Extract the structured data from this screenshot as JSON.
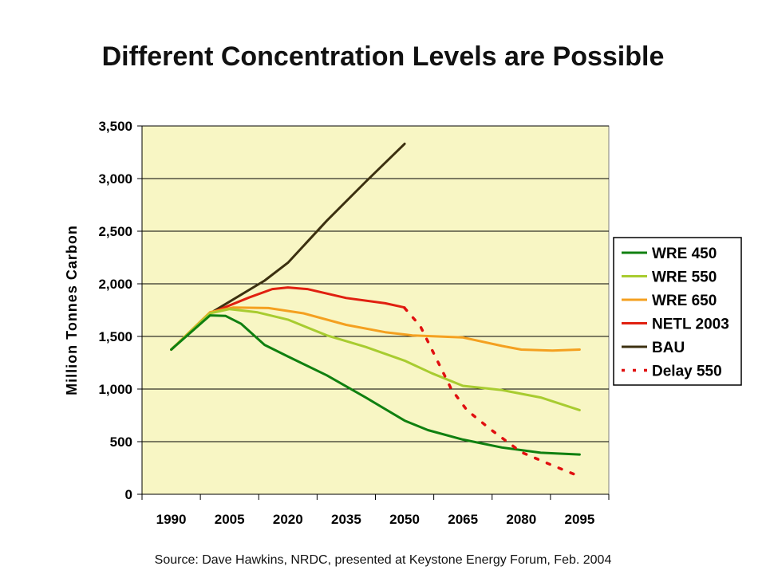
{
  "title": "Different Concentration Levels are Possible",
  "source": "Source: Dave Hawkins, NRDC, presented at Keystone Energy Forum, Feb. 2004",
  "colors": {
    "plot_background": "#F8F6C4",
    "gridline": "#000000"
  },
  "chart_data": {
    "type": "line",
    "title": "Different Concentration Levels are Possible",
    "xlabel": "",
    "ylabel": "Million Tonnes Carbon",
    "categories": [
      "1990",
      "2005",
      "2020",
      "2035",
      "2050",
      "2065",
      "2080",
      "2095"
    ],
    "xlim": [
      1982.5,
      2102.5
    ],
    "ylim": [
      0,
      3500
    ],
    "yticks": [
      0,
      500,
      1000,
      1500,
      2000,
      2500,
      3000,
      3500
    ],
    "ytick_labels": [
      "0",
      "500",
      "1,000",
      "1,500",
      "2,000",
      "2,500",
      "3,000",
      "3,500"
    ],
    "grid": "horizontal",
    "legend": "right",
    "series": [
      {
        "name": "WRE 450",
        "color": "#108010",
        "dashed": false,
        "points": [
          [
            1990,
            1375
          ],
          [
            2000,
            1700
          ],
          [
            2004,
            1695
          ],
          [
            2008,
            1620
          ],
          [
            2014,
            1420
          ],
          [
            2020,
            1310
          ],
          [
            2030,
            1130
          ],
          [
            2040,
            920
          ],
          [
            2050,
            700
          ],
          [
            2056,
            610
          ],
          [
            2065,
            520
          ],
          [
            2075,
            445
          ],
          [
            2085,
            395
          ],
          [
            2095,
            378
          ]
        ]
      },
      {
        "name": "WRE 550",
        "color": "#A8CC30",
        "dashed": false,
        "points": [
          [
            1990,
            1375
          ],
          [
            2000,
            1720
          ],
          [
            2005,
            1760
          ],
          [
            2012,
            1730
          ],
          [
            2020,
            1660
          ],
          [
            2030,
            1510
          ],
          [
            2040,
            1400
          ],
          [
            2050,
            1270
          ],
          [
            2057,
            1150
          ],
          [
            2065,
            1030
          ],
          [
            2075,
            990
          ],
          [
            2085,
            920
          ],
          [
            2095,
            800
          ]
        ]
      },
      {
        "name": "WRE 650",
        "color": "#F4A020",
        "dashed": false,
        "points": [
          [
            1990,
            1375
          ],
          [
            2000,
            1730
          ],
          [
            2006,
            1775
          ],
          [
            2015,
            1770
          ],
          [
            2024,
            1720
          ],
          [
            2035,
            1610
          ],
          [
            2045,
            1540
          ],
          [
            2052,
            1510
          ],
          [
            2065,
            1490
          ],
          [
            2075,
            1410
          ],
          [
            2080,
            1375
          ],
          [
            2088,
            1365
          ],
          [
            2095,
            1375
          ]
        ]
      },
      {
        "name": "NETL 2003",
        "color": "#E02010",
        "dashed": false,
        "points": [
          [
            1990,
            1375
          ],
          [
            2000,
            1720
          ],
          [
            2010,
            1870
          ],
          [
            2016,
            1950
          ],
          [
            2020,
            1965
          ],
          [
            2025,
            1950
          ],
          [
            2035,
            1865
          ],
          [
            2045,
            1815
          ],
          [
            2050,
            1775
          ]
        ]
      },
      {
        "name": "BAU",
        "color": "#3C3010",
        "dashed": false,
        "points": [
          [
            1990,
            1375
          ],
          [
            2000,
            1720
          ],
          [
            2014,
            2030
          ],
          [
            2020,
            2200
          ],
          [
            2030,
            2600
          ],
          [
            2040,
            2970
          ],
          [
            2050,
            3330
          ]
        ]
      },
      {
        "name": "Delay 550",
        "color": "#E01010",
        "dashed": true,
        "points": [
          [
            2050,
            1770
          ],
          [
            2054,
            1600
          ],
          [
            2058,
            1300
          ],
          [
            2062,
            1000
          ],
          [
            2066,
            800
          ],
          [
            2072,
            620
          ],
          [
            2080,
            400
          ],
          [
            2087,
            290
          ],
          [
            2095,
            170
          ]
        ]
      }
    ]
  }
}
